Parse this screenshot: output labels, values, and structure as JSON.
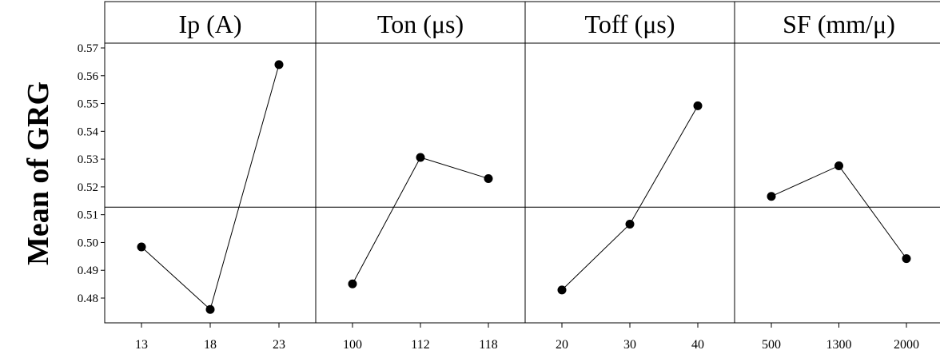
{
  "chart_data": {
    "type": "line",
    "ylabel": "Mean of GRG",
    "ylim": [
      0.47,
      0.575
    ],
    "yticks": [
      "0.48",
      "0.49",
      "0.50",
      "0.51",
      "0.52",
      "0.53",
      "0.54",
      "0.55",
      "0.56",
      "0.57"
    ],
    "reference_line": 0.5127,
    "grid": false,
    "colors": {
      "line": "#000000",
      "marker": "#000000",
      "frame": "#000000",
      "background": "#ffffff"
    },
    "panels": [
      {
        "title": "Ip (A)",
        "categories": [
          "13",
          "18",
          "23"
        ],
        "values": [
          0.4984,
          0.4759,
          0.564
        ]
      },
      {
        "title": "Ton (μs)",
        "categories": [
          "100",
          "112",
          "118"
        ],
        "values": [
          0.4851,
          0.5306,
          0.523
        ]
      },
      {
        "title": "Toff (μs)",
        "categories": [
          "20",
          "30",
          "40"
        ],
        "values": [
          0.4829,
          0.5066,
          0.5492
        ]
      },
      {
        "title": "SF (mm/μ)",
        "categories": [
          "500",
          "1300",
          "2000"
        ],
        "values": [
          0.5166,
          0.5276,
          0.4942
        ]
      }
    ]
  }
}
